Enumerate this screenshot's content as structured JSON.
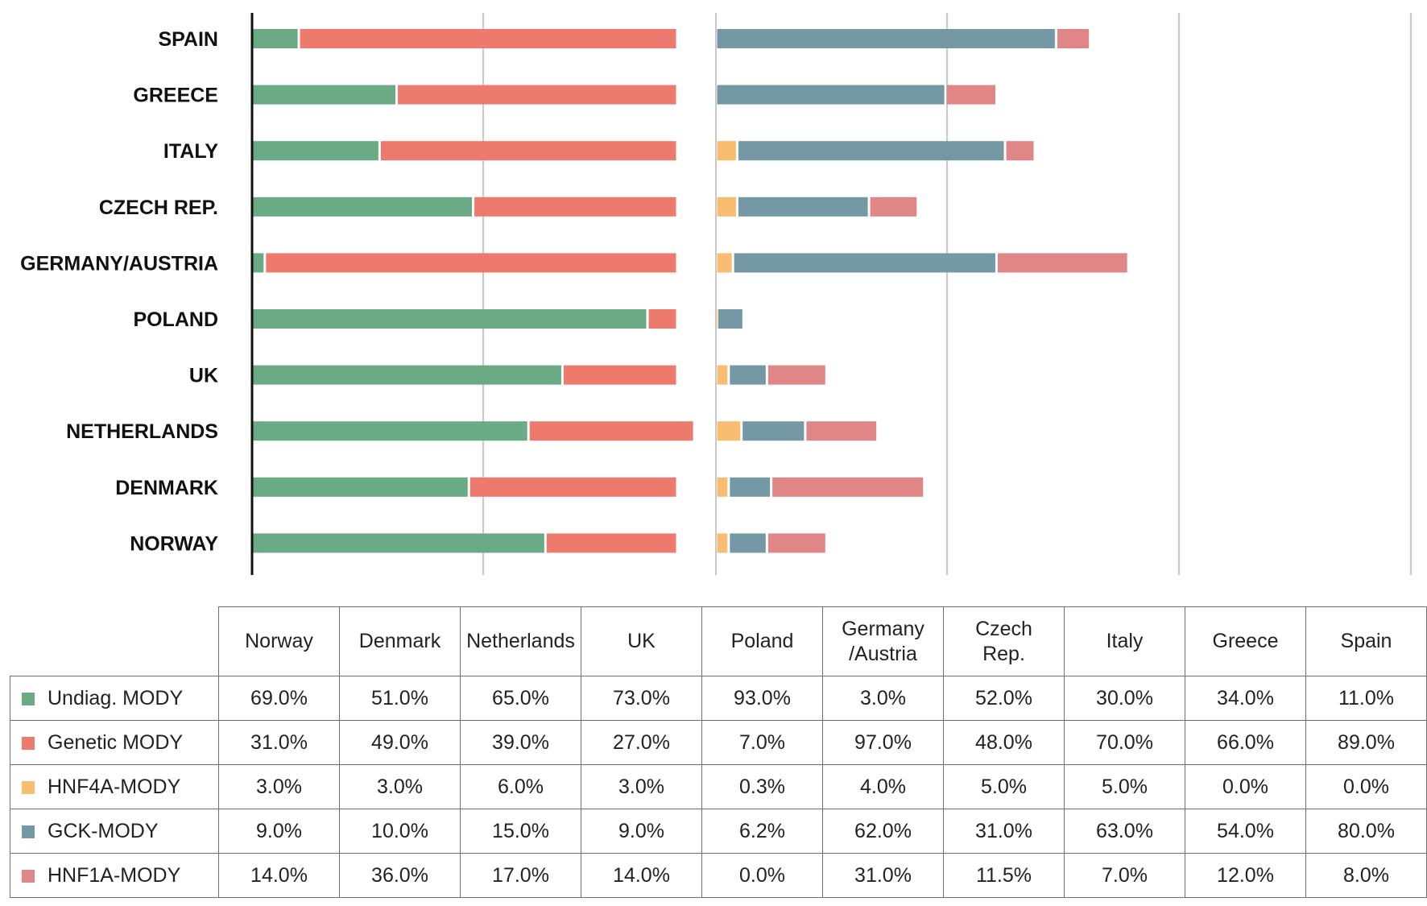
{
  "chart_data": {
    "type": "bar",
    "subtype": "stacked-horizontal",
    "title": "",
    "xlabel": "",
    "ylabel": "",
    "grid": true,
    "categories": [
      "Spain",
      "Greece",
      "Italy",
      "Czech Rep.",
      "Germany/Austria",
      "Poland",
      "UK",
      "Netherlands",
      "Denmark",
      "Norway"
    ],
    "category_labels": [
      "SPAIN",
      "GREECE",
      "ITALY",
      "CZECH REP.",
      "GERMANY/AUSTRIA",
      "POLAND",
      "UK",
      "NETHERLANDS",
      "DENMARK",
      "NORWAY"
    ],
    "series": [
      {
        "name": "Undiag. MODY",
        "color": "#6aaa85",
        "values": [
          11.0,
          34.0,
          30.0,
          52.0,
          3.0,
          93.0,
          73.0,
          65.0,
          51.0,
          69.0
        ]
      },
      {
        "name": "Genetic MODY",
        "color": "#ee7a6e",
        "values": [
          89.0,
          66.0,
          70.0,
          48.0,
          97.0,
          7.0,
          27.0,
          39.0,
          49.0,
          31.0
        ]
      },
      {
        "name": "HNF4A-MODY",
        "color": "#f8bd70",
        "values": [
          0.0,
          0.0,
          5.0,
          5.0,
          4.0,
          0.3,
          3.0,
          6.0,
          3.0,
          3.0
        ]
      },
      {
        "name": "GCK-MODY",
        "color": "#7499a4",
        "values": [
          80.0,
          54.0,
          63.0,
          31.0,
          62.0,
          6.2,
          9.0,
          15.0,
          10.0,
          9.0
        ]
      },
      {
        "name": "HNF1A-MODY",
        "color": "#e08686",
        "values": [
          8.0,
          12.0,
          7.0,
          11.5,
          31.0,
          0.0,
          14.0,
          17.0,
          36.0,
          14.0
        ]
      }
    ]
  },
  "table": {
    "headers": [
      "Norway",
      "Denmark",
      "Netherlands",
      "UK",
      "Poland",
      "Germany /Austria",
      "Czech Rep.",
      "Italy",
      "Greece",
      "Spain"
    ],
    "rows": [
      {
        "label": "Undiag. MODY",
        "color": "#6aaa85",
        "cells": [
          "69.0%",
          "51.0%",
          "65.0%",
          "73.0%",
          "93.0%",
          "3.0%",
          "52.0%",
          "30.0%",
          "34.0%",
          "11.0%"
        ]
      },
      {
        "label": "Genetic MODY",
        "color": "#ee7a6e",
        "cells": [
          "31.0%",
          "49.0%",
          "39.0%",
          "27.0%",
          "7.0%",
          "97.0%",
          "48.0%",
          "70.0%",
          "66.0%",
          "89.0%"
        ]
      },
      {
        "label": "HNF4A-MODY",
        "color": "#f8bd70",
        "cells": [
          "3.0%",
          "3.0%",
          "6.0%",
          "3.0%",
          "0.3%",
          "4.0%",
          "5.0%",
          "5.0%",
          "0.0%",
          "0.0%"
        ]
      },
      {
        "label": "GCK-MODY",
        "color": "#7499a4",
        "cells": [
          "9.0%",
          "10.0%",
          "15.0%",
          "9.0%",
          "6.2%",
          "62.0%",
          "31.0%",
          "63.0%",
          "54.0%",
          "80.0%"
        ]
      },
      {
        "label": "HNF1A-MODY",
        "color": "#e08686",
        "cells": [
          "14.0%",
          "36.0%",
          "17.0%",
          "14.0%",
          "0.0%",
          "31.0%",
          "11.5%",
          "7.0%",
          "12.0%",
          "8.0%"
        ]
      }
    ]
  }
}
